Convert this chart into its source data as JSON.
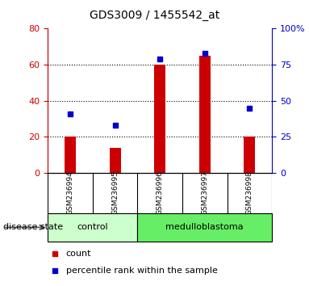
{
  "title": "GDS3009 / 1455542_at",
  "samples": [
    "GSM236994",
    "GSM236995",
    "GSM236996",
    "GSM236997",
    "GSM236998"
  ],
  "bar_values": [
    20,
    14,
    60,
    65,
    20
  ],
  "percentile_values": [
    41,
    33,
    79,
    83,
    45
  ],
  "bar_color": "#cc0000",
  "dot_color": "#0000cc",
  "left_ylim": [
    0,
    80
  ],
  "right_ylim": [
    0,
    100
  ],
  "left_yticks": [
    0,
    20,
    40,
    60,
    80
  ],
  "right_yticks": [
    0,
    25,
    50,
    75,
    100
  ],
  "right_yticklabels": [
    "0",
    "25",
    "50",
    "75",
    "100%"
  ],
  "groups": [
    {
      "label": "control",
      "indices": [
        0,
        1
      ],
      "color": "#ccffcc"
    },
    {
      "label": "medulloblastoma",
      "indices": [
        2,
        3,
        4
      ],
      "color": "#66ee66"
    }
  ],
  "group_label": "disease state",
  "legend_count_label": "count",
  "legend_percentile_label": "percentile rank within the sample",
  "bg_color": "#ffffff",
  "tick_area_color": "#c8c8c8",
  "grid_color": "#000000",
  "left_tick_color": "#cc0000",
  "right_tick_color": "#0000cc"
}
